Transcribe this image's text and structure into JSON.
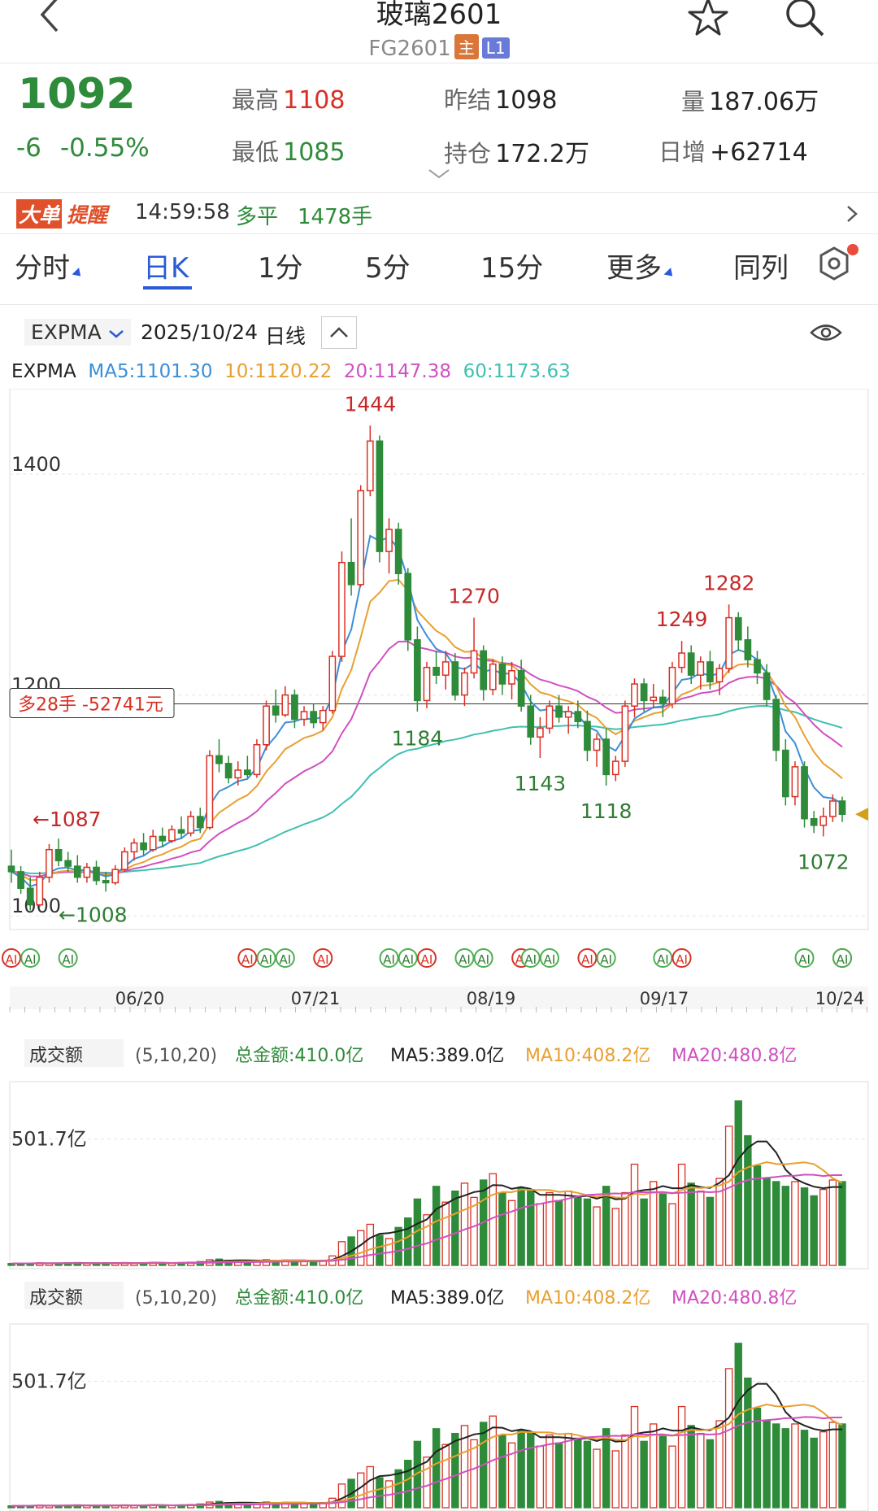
{
  "header": {
    "title": "玻璃2601",
    "code": "FG2601",
    "badge_main": "主",
    "badge_l1": "L1"
  },
  "quote": {
    "price": "1092",
    "change": "-6",
    "change_pct": "-0.55%",
    "high_label": "最高",
    "high": "1108",
    "low_label": "最低",
    "low": "1085",
    "prev_label": "昨结",
    "prev": "1098",
    "oi_label": "持仓",
    "oi": "172.2万",
    "vol_label": "量",
    "vol": "187.06万",
    "daily_label": "日增",
    "daily": "+62714"
  },
  "alert": {
    "tag1": "大单",
    "tag2": "提醒",
    "time": "14:59:58",
    "action": "多平",
    "qty": "1478手"
  },
  "tabs": [
    {
      "label": "分时"
    },
    {
      "label": "日K"
    },
    {
      "label": "1分"
    },
    {
      "label": "5分"
    },
    {
      "label": "15分"
    },
    {
      "label": "更多"
    },
    {
      "label": "同列"
    }
  ],
  "indicator_bar": {
    "indicator": "EXPMA",
    "date": "2025/10/24",
    "period": "日线"
  },
  "ma_legend": {
    "name": "EXPMA",
    "ma5": "MA5:1101.30",
    "ma10": "10:1120.22",
    "ma20": "20:1147.38",
    "ma60": "60:1173.63"
  },
  "colors": {
    "up": "#d93025",
    "down": "#2e8b3a",
    "ma5": "#3a8fd8",
    "ma10": "#e8a030",
    "ma20": "#d050c0",
    "ma60": "#40c0b0",
    "accent": "#2a5bd7"
  },
  "chart_data": {
    "type": "candlestick",
    "y_ticks": [
      "1400",
      "1200",
      "1000"
    ],
    "ylim": [
      995,
      1470
    ],
    "x_ticks": [
      "06/20",
      "07/21",
      "08/19",
      "09/17",
      "10/24"
    ],
    "annotations": [
      "1444",
      "1270",
      "1282",
      "1249",
      "1184",
      "1143",
      "1118",
      "1072",
      "1087",
      "1008"
    ],
    "position_label": "多28手 -52741元",
    "position_price": 1192,
    "ohlc": [
      [
        1045,
        1060,
        1030,
        1040
      ],
      [
        1040,
        1045,
        1020,
        1025
      ],
      [
        1025,
        1035,
        1005,
        1010
      ],
      [
        1010,
        1040,
        1008,
        1035
      ],
      [
        1035,
        1065,
        1030,
        1060
      ],
      [
        1060,
        1070,
        1045,
        1050
      ],
      [
        1050,
        1058,
        1040,
        1045
      ],
      [
        1045,
        1055,
        1030,
        1035
      ],
      [
        1035,
        1048,
        1030,
        1044
      ],
      [
        1044,
        1050,
        1028,
        1032
      ],
      [
        1032,
        1040,
        1022,
        1030
      ],
      [
        1030,
        1046,
        1028,
        1042
      ],
      [
        1042,
        1062,
        1040,
        1058
      ],
      [
        1058,
        1070,
        1050,
        1066
      ],
      [
        1066,
        1075,
        1055,
        1060
      ],
      [
        1060,
        1078,
        1058,
        1072
      ],
      [
        1072,
        1080,
        1062,
        1068
      ],
      [
        1068,
        1082,
        1066,
        1078
      ],
      [
        1078,
        1090,
        1070,
        1075
      ],
      [
        1075,
        1095,
        1072,
        1090
      ],
      [
        1090,
        1098,
        1075,
        1080
      ],
      [
        1080,
        1150,
        1078,
        1145
      ],
      [
        1145,
        1160,
        1130,
        1138
      ],
      [
        1138,
        1145,
        1120,
        1125
      ],
      [
        1125,
        1140,
        1118,
        1132
      ],
      [
        1132,
        1145,
        1125,
        1128
      ],
      [
        1128,
        1160,
        1125,
        1155
      ],
      [
        1155,
        1195,
        1150,
        1190
      ],
      [
        1190,
        1205,
        1175,
        1182
      ],
      [
        1182,
        1208,
        1180,
        1200
      ],
      [
        1200,
        1205,
        1170,
        1178
      ],
      [
        1178,
        1190,
        1172,
        1185
      ],
      [
        1185,
        1192,
        1170,
        1175
      ],
      [
        1175,
        1190,
        1168,
        1186
      ],
      [
        1186,
        1240,
        1183,
        1235
      ],
      [
        1235,
        1330,
        1230,
        1320
      ],
      [
        1320,
        1360,
        1290,
        1300
      ],
      [
        1300,
        1390,
        1298,
        1385
      ],
      [
        1385,
        1444,
        1380,
        1430
      ],
      [
        1430,
        1435,
        1320,
        1330
      ],
      [
        1330,
        1360,
        1310,
        1350
      ],
      [
        1350,
        1356,
        1300,
        1310
      ],
      [
        1310,
        1315,
        1240,
        1250
      ],
      [
        1250,
        1262,
        1185,
        1195
      ],
      [
        1195,
        1230,
        1188,
        1225
      ],
      [
        1225,
        1240,
        1210,
        1218
      ],
      [
        1218,
        1240,
        1205,
        1230
      ],
      [
        1230,
        1238,
        1195,
        1200
      ],
      [
        1200,
        1225,
        1190,
        1220
      ],
      [
        1220,
        1270,
        1215,
        1240
      ],
      [
        1240,
        1245,
        1195,
        1205
      ],
      [
        1205,
        1232,
        1200,
        1228
      ],
      [
        1228,
        1235,
        1200,
        1210
      ],
      [
        1210,
        1230,
        1196,
        1222
      ],
      [
        1222,
        1232,
        1185,
        1190
      ],
      [
        1190,
        1200,
        1155,
        1162
      ],
      [
        1162,
        1180,
        1143,
        1170
      ],
      [
        1170,
        1195,
        1165,
        1190
      ],
      [
        1190,
        1200,
        1175,
        1180
      ],
      [
        1180,
        1190,
        1165,
        1185
      ],
      [
        1185,
        1195,
        1170,
        1176
      ],
      [
        1176,
        1186,
        1140,
        1150
      ],
      [
        1150,
        1165,
        1135,
        1160
      ],
      [
        1160,
        1170,
        1118,
        1128
      ],
      [
        1128,
        1145,
        1122,
        1140
      ],
      [
        1140,
        1195,
        1135,
        1190
      ],
      [
        1190,
        1215,
        1180,
        1210
      ],
      [
        1210,
        1215,
        1185,
        1195
      ],
      [
        1195,
        1210,
        1188,
        1198
      ],
      [
        1198,
        1205,
        1180,
        1192
      ],
      [
        1192,
        1230,
        1188,
        1225
      ],
      [
        1225,
        1249,
        1220,
        1238
      ],
      [
        1238,
        1245,
        1210,
        1218
      ],
      [
        1218,
        1235,
        1205,
        1230
      ],
      [
        1230,
        1240,
        1205,
        1212
      ],
      [
        1212,
        1228,
        1200,
        1224
      ],
      [
        1224,
        1282,
        1220,
        1270
      ],
      [
        1270,
        1275,
        1240,
        1250
      ],
      [
        1250,
        1262,
        1225,
        1232
      ],
      [
        1232,
        1240,
        1210,
        1220
      ],
      [
        1220,
        1228,
        1190,
        1196
      ],
      [
        1196,
        1200,
        1140,
        1150
      ],
      [
        1150,
        1160,
        1100,
        1108
      ],
      [
        1108,
        1140,
        1100,
        1135
      ],
      [
        1135,
        1140,
        1080,
        1088
      ],
      [
        1088,
        1095,
        1075,
        1082
      ],
      [
        1082,
        1098,
        1072,
        1090
      ],
      [
        1090,
        1110,
        1085,
        1104
      ],
      [
        1104,
        1108,
        1085,
        1092
      ]
    ],
    "panels": [
      {
        "indicator": "成交额",
        "params": "(5,10,20)",
        "total": "总金额:410.0亿",
        "ma5": "MA5:389.0亿",
        "ma10": "MA10:408.2亿",
        "ma20": "MA20:480.8亿",
        "y_label": "501.7亿"
      },
      {
        "indicator": "成交额",
        "params": "(5,10,20)",
        "total": "总金额:410.0亿",
        "ma5": "MA5:389.0亿",
        "ma10": "MA10:408.2亿",
        "ma20": "MA20:480.8亿",
        "y_label": "501.7亿"
      }
    ],
    "volume": [
      6,
      7,
      6,
      8,
      7,
      6,
      8,
      9,
      7,
      6,
      7,
      8,
      9,
      8,
      7,
      9,
      8,
      7,
      9,
      10,
      12,
      18,
      20,
      16,
      14,
      12,
      15,
      18,
      16,
      17,
      15,
      14,
      13,
      16,
      30,
      75,
      90,
      110,
      130,
      95,
      85,
      120,
      150,
      210,
      160,
      250,
      200,
      235,
      260,
      215,
      270,
      290,
      230,
      205,
      245,
      240,
      195,
      230,
      205,
      235,
      220,
      210,
      185,
      250,
      180,
      230,
      320,
      210,
      265,
      230,
      195,
      320,
      260,
      235,
      215,
      275,
      440,
      520,
      410,
      315,
      275,
      265,
      250,
      265,
      245,
      220,
      240,
      270,
      265
    ]
  }
}
